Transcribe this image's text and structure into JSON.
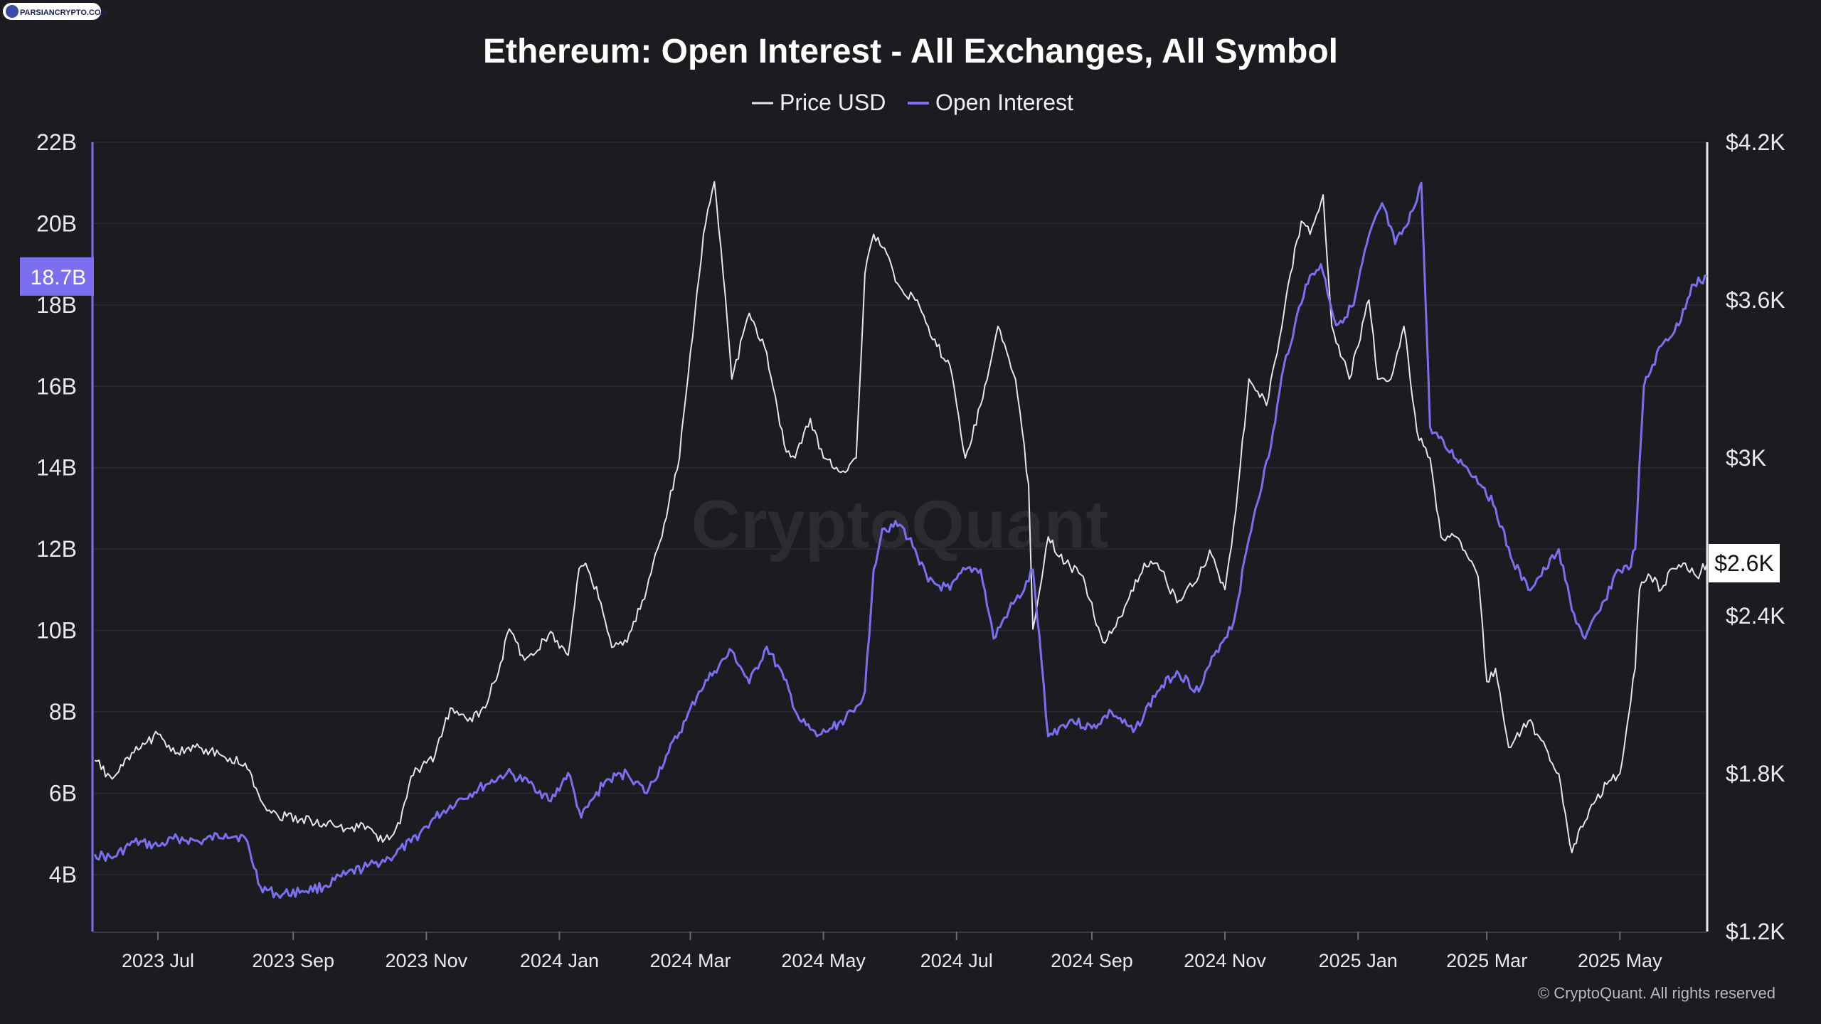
{
  "site_badge": "PARSIANCRYPTO.COM",
  "watermark": "CryptoQuant",
  "copyright": "© CryptoQuant. All rights reserved",
  "colors": {
    "background": "#1c1b20",
    "price": "#e6e6e6",
    "open_interest": "#7b6ff0",
    "grid": "#2a2a3a",
    "oi_badge": "#7b6ff0",
    "price_badge": "#ffffff"
  },
  "chart_data": {
    "type": "line",
    "title": "Ethereum: Open Interest - All Exchanges, All Symbol",
    "legend": [
      "Price USD",
      "Open Interest"
    ],
    "legend_position": "top-center",
    "grid": true,
    "x_ticks": [
      "2023 Jul",
      "2023 Sep",
      "2023 Nov",
      "2024 Jan",
      "2024 Mar",
      "2024 May",
      "2024 Jul",
      "2024 Sep",
      "2024 Nov",
      "2025 Jan",
      "2025 Mar",
      "2025 May"
    ],
    "x_tick_dates": [
      "2023-07-01",
      "2023-09-01",
      "2023-11-01",
      "2024-01-01",
      "2024-03-01",
      "2024-05-01",
      "2024-07-01",
      "2024-09-01",
      "2024-11-01",
      "2025-01-01",
      "2025-03-01",
      "2025-05-01"
    ],
    "x_range": [
      "2023-06-01",
      "2025-06-10"
    ],
    "y_left": {
      "ticks": [
        "4B",
        "6B",
        "8B",
        "10B",
        "12B",
        "14B",
        "16B",
        "18B",
        "20B",
        "22B"
      ],
      "tick_values": [
        4,
        6,
        8,
        10,
        12,
        14,
        16,
        18,
        20,
        22
      ],
      "unit": "B",
      "range": [
        2.6,
        22
      ],
      "current_label": "18.7B",
      "current_value": 18.7
    },
    "y_right": {
      "ticks": [
        "$1.2K",
        "$1.8K",
        "$2.4K",
        "$3K",
        "$3.6K",
        "$4.2K"
      ],
      "tick_values": [
        1200,
        1800,
        2400,
        3000,
        3600,
        4200
      ],
      "range": [
        1200,
        4200
      ],
      "current_label": "$2.6K",
      "current_value": 2600
    },
    "series": [
      {
        "name": "Price USD",
        "axis": "right",
        "x": [
          "2023-06-02",
          "2023-06-10",
          "2023-06-20",
          "2023-07-01",
          "2023-07-10",
          "2023-07-20",
          "2023-08-01",
          "2023-08-10",
          "2023-08-17",
          "2023-08-25",
          "2023-09-05",
          "2023-09-15",
          "2023-09-25",
          "2023-10-05",
          "2023-10-12",
          "2023-10-20",
          "2023-10-25",
          "2023-11-05",
          "2023-11-12",
          "2023-11-20",
          "2023-11-28",
          "2023-12-05",
          "2023-12-09",
          "2023-12-15",
          "2023-12-20",
          "2023-12-28",
          "2024-01-05",
          "2024-01-10",
          "2024-01-13",
          "2024-01-20",
          "2024-01-25",
          "2024-02-01",
          "2024-02-10",
          "2024-02-18",
          "2024-02-25",
          "2024-03-01",
          "2024-03-07",
          "2024-03-12",
          "2024-03-15",
          "2024-03-20",
          "2024-03-28",
          "2024-04-05",
          "2024-04-13",
          "2024-04-18",
          "2024-04-25",
          "2024-05-01",
          "2024-05-10",
          "2024-05-16",
          "2024-05-20",
          "2024-05-24",
          "2024-05-28",
          "2024-06-05",
          "2024-06-12",
          "2024-06-20",
          "2024-06-28",
          "2024-07-05",
          "2024-07-12",
          "2024-07-20",
          "2024-07-28",
          "2024-08-03",
          "2024-08-05",
          "2024-08-12",
          "2024-08-20",
          "2024-08-28",
          "2024-09-06",
          "2024-09-15",
          "2024-09-25",
          "2024-10-01",
          "2024-10-10",
          "2024-10-20",
          "2024-10-25",
          "2024-11-01",
          "2024-11-06",
          "2024-11-12",
          "2024-11-20",
          "2024-11-25",
          "2024-12-01",
          "2024-12-06",
          "2024-12-10",
          "2024-12-16",
          "2024-12-20",
          "2024-12-28",
          "2025-01-06",
          "2025-01-10",
          "2025-01-16",
          "2025-01-22",
          "2025-01-28",
          "2025-02-03",
          "2025-02-08",
          "2025-02-15",
          "2025-02-25",
          "2025-03-01",
          "2025-03-05",
          "2025-03-11",
          "2025-03-20",
          "2025-03-28",
          "2025-04-03",
          "2025-04-09",
          "2025-04-12",
          "2025-04-20",
          "2025-04-25",
          "2025-05-01",
          "2025-05-08",
          "2025-05-10",
          "2025-05-15",
          "2025-05-20",
          "2025-05-25",
          "2025-05-30",
          "2025-06-05",
          "2025-06-10"
        ],
        "y": [
          1850,
          1780,
          1880,
          1950,
          1880,
          1900,
          1860,
          1840,
          1700,
          1640,
          1630,
          1610,
          1590,
          1600,
          1540,
          1610,
          1790,
          1870,
          2050,
          2000,
          2050,
          2220,
          2350,
          2250,
          2250,
          2340,
          2250,
          2580,
          2600,
          2450,
          2280,
          2300,
          2500,
          2750,
          3000,
          3400,
          3850,
          4050,
          3800,
          3300,
          3550,
          3400,
          3050,
          3000,
          3150,
          3000,
          2950,
          3000,
          3700,
          3850,
          3800,
          3650,
          3600,
          3450,
          3350,
          3000,
          3200,
          3500,
          3300,
          2900,
          2350,
          2700,
          2600,
          2550,
          2300,
          2400,
          2600,
          2600,
          2450,
          2550,
          2650,
          2500,
          2800,
          3300,
          3200,
          3400,
          3700,
          3900,
          3850,
          4000,
          3500,
          3300,
          3600,
          3300,
          3300,
          3500,
          3100,
          3000,
          2700,
          2700,
          2550,
          2150,
          2200,
          1900,
          2000,
          1900,
          1800,
          1500,
          1580,
          1700,
          1760,
          1800,
          2200,
          2500,
          2550,
          2500,
          2580,
          2600,
          2550,
          2600
        ]
      },
      {
        "name": "Open Interest",
        "axis": "left",
        "x": [
          "2023-06-02",
          "2023-06-10",
          "2023-06-20",
          "2023-07-01",
          "2023-07-10",
          "2023-07-20",
          "2023-08-01",
          "2023-08-10",
          "2023-08-17",
          "2023-08-25",
          "2023-09-05",
          "2023-09-15",
          "2023-09-25",
          "2023-10-05",
          "2023-10-15",
          "2023-10-25",
          "2023-11-05",
          "2023-11-15",
          "2023-11-28",
          "2023-12-08",
          "2023-12-20",
          "2023-12-28",
          "2024-01-05",
          "2024-01-11",
          "2024-01-22",
          "2024-02-01",
          "2024-02-10",
          "2024-02-20",
          "2024-02-28",
          "2024-03-05",
          "2024-03-12",
          "2024-03-20",
          "2024-03-28",
          "2024-04-05",
          "2024-04-13",
          "2024-04-20",
          "2024-04-28",
          "2024-05-05",
          "2024-05-15",
          "2024-05-20",
          "2024-05-24",
          "2024-05-28",
          "2024-06-05",
          "2024-06-12",
          "2024-06-18",
          "2024-06-28",
          "2024-07-05",
          "2024-07-12",
          "2024-07-18",
          "2024-07-25",
          "2024-08-01",
          "2024-08-05",
          "2024-08-12",
          "2024-08-22",
          "2024-09-01",
          "2024-09-10",
          "2024-09-20",
          "2024-10-01",
          "2024-10-10",
          "2024-10-20",
          "2024-10-28",
          "2024-11-05",
          "2024-11-11",
          "2024-11-15",
          "2024-11-22",
          "2024-11-28",
          "2024-12-03",
          "2024-12-08",
          "2024-12-15",
          "2024-12-22",
          "2024-12-30",
          "2025-01-05",
          "2025-01-12",
          "2025-01-18",
          "2025-01-24",
          "2025-01-30",
          "2025-02-03",
          "2025-02-10",
          "2025-02-20",
          "2025-02-28",
          "2025-03-05",
          "2025-03-12",
          "2025-03-20",
          "2025-03-28",
          "2025-04-03",
          "2025-04-09",
          "2025-04-15",
          "2025-04-22",
          "2025-04-30",
          "2025-05-05",
          "2025-05-08",
          "2025-05-12",
          "2025-05-20",
          "2025-05-28",
          "2025-06-03",
          "2025-06-10"
        ],
        "y": [
          4.5,
          4.4,
          4.8,
          4.7,
          4.9,
          4.8,
          5.0,
          4.9,
          3.7,
          3.5,
          3.6,
          3.7,
          4.0,
          4.2,
          4.4,
          4.8,
          5.4,
          5.8,
          6.2,
          6.5,
          6.2,
          5.8,
          6.5,
          5.4,
          6.3,
          6.5,
          6.0,
          7.0,
          7.8,
          8.5,
          9.0,
          9.5,
          8.7,
          9.6,
          8.8,
          7.8,
          7.4,
          7.6,
          8.0,
          8.5,
          11.5,
          12.5,
          12.6,
          12.0,
          11.2,
          11.0,
          11.5,
          11.5,
          9.8,
          10.5,
          11.0,
          11.5,
          7.4,
          7.8,
          7.6,
          8.0,
          7.5,
          8.5,
          9.0,
          8.5,
          9.5,
          10.2,
          12.0,
          13.0,
          14.5,
          16.5,
          17.5,
          18.5,
          19.0,
          17.5,
          18.0,
          19.5,
          20.5,
          19.5,
          20.0,
          21.0,
          15.0,
          14.5,
          14.0,
          13.5,
          13.0,
          11.8,
          11.0,
          11.5,
          12.0,
          10.5,
          9.8,
          10.5,
          11.5,
          11.5,
          12.0,
          16.0,
          17.0,
          17.5,
          18.5,
          18.7
        ]
      }
    ]
  }
}
